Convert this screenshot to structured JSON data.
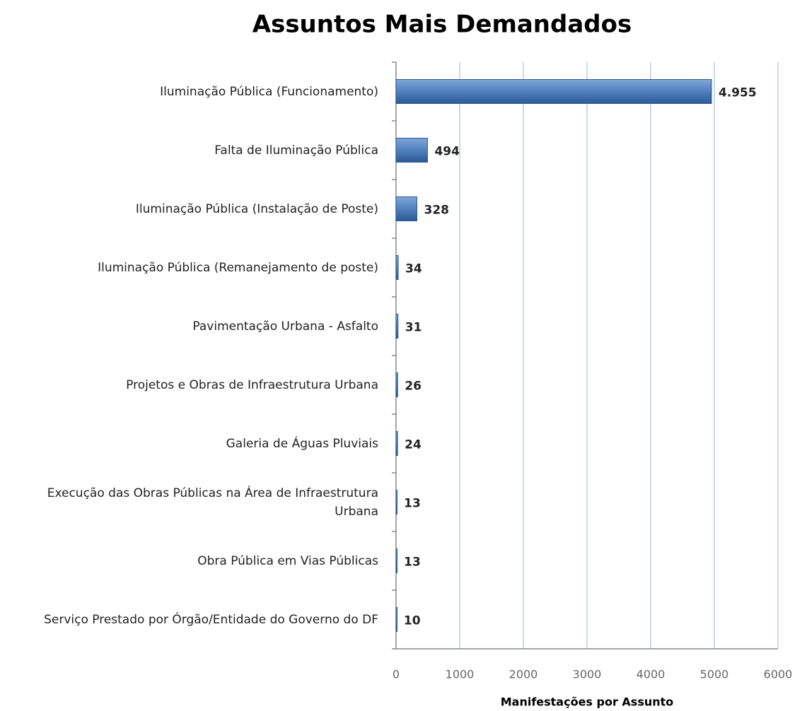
{
  "chart_data": {
    "type": "barh",
    "title": "Assuntos Mais Demandados",
    "x_label": "Manifestações por Assunto",
    "categories": [
      "Iluminação Pública (Funcionamento)",
      "Falta de Iluminação Pública",
      "Iluminação Pública (Instalação de Poste)",
      "Iluminação Pública (Remanejamento de poste)",
      "Pavimentação Urbana - Asfalto",
      "Projetos e Obras de Infraestrutura Urbana",
      "Galeria de Águas Pluviais",
      "Execução das Obras Públicas na Área de Infraestrutura Urbana",
      "Obra Pública em Vias Públicas",
      "Serviço Prestado por Órgão/Entidade do Governo do DF"
    ],
    "values": [
      4955,
      494,
      328,
      34,
      31,
      26,
      24,
      13,
      13,
      10
    ],
    "value_labels": [
      "4.955",
      "494",
      "328",
      "34",
      "31",
      "26",
      "24",
      "13",
      "13",
      "10"
    ],
    "color": "#4f81bd",
    "xlim": [
      0,
      6000
    ],
    "xticks": [
      0,
      1000,
      2000,
      3000,
      4000,
      5000,
      6000
    ],
    "grid": true
  }
}
